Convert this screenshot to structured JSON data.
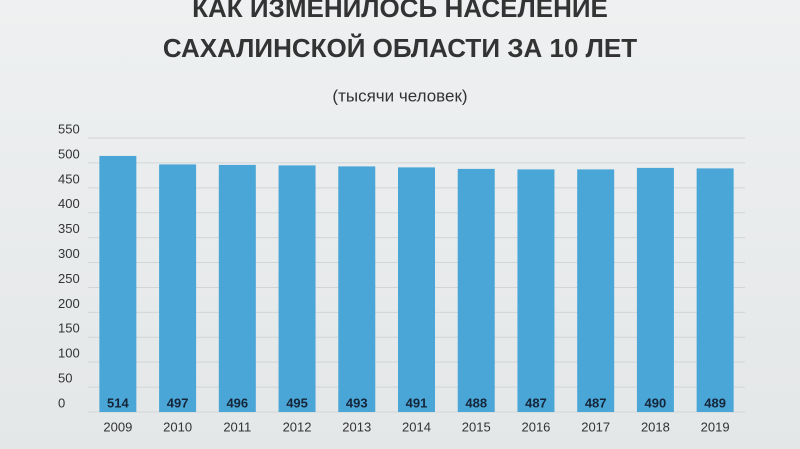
{
  "chart_data": {
    "type": "bar",
    "title": [
      "КАК ИЗМЕНИЛОСЬ НАСЕЛЕНИЕ",
      "САХАЛИНСКОЙ ОБЛАСТИ ЗА 10 ЛЕТ"
    ],
    "subtitle": "(тысячи человек)",
    "categories": [
      "2009",
      "2010",
      "2011",
      "2012",
      "2013",
      "2014",
      "2015",
      "2016",
      "2017",
      "2018",
      "2019"
    ],
    "values": [
      514,
      497,
      496,
      495,
      493,
      491,
      488,
      487,
      487,
      490,
      489
    ],
    "color": "#4aa6d6",
    "ylim": [
      0,
      550
    ],
    "yticks": [
      0,
      50,
      100,
      150,
      200,
      250,
      300,
      350,
      400,
      450,
      500,
      550
    ],
    "grid": true
  }
}
